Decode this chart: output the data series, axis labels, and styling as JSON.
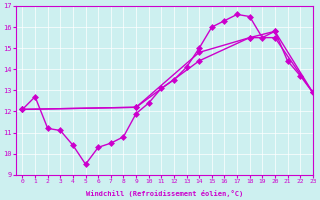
{
  "xlabel": "Windchill (Refroidissement éolien,°C)",
  "xlim": [
    -0.5,
    23
  ],
  "ylim": [
    9,
    17
  ],
  "xticks": [
    0,
    1,
    2,
    3,
    4,
    5,
    6,
    7,
    8,
    9,
    10,
    11,
    12,
    13,
    14,
    15,
    16,
    17,
    18,
    19,
    20,
    21,
    22,
    23
  ],
  "yticks": [
    9,
    10,
    11,
    12,
    13,
    14,
    15,
    16,
    17
  ],
  "bg_color": "#cdf0f0",
  "line_color": "#cc00cc",
  "series": [
    {
      "x": [
        0,
        1,
        2,
        3,
        4,
        5,
        6,
        7,
        8,
        9,
        10,
        11,
        12,
        13,
        14,
        15,
        16,
        17,
        18,
        19,
        20,
        21,
        22,
        23
      ],
      "y": [
        12.1,
        12.7,
        11.2,
        11.1,
        10.4,
        9.5,
        10.3,
        10.5,
        10.8,
        11.9,
        12.4,
        13.1,
        13.5,
        14.1,
        15.0,
        16.0,
        16.3,
        16.6,
        16.5,
        15.5,
        15.8,
        14.4,
        13.7,
        12.9
      ]
    },
    {
      "x": [
        0,
        9,
        14,
        18,
        20,
        23
      ],
      "y": [
        12.1,
        12.2,
        14.8,
        15.5,
        15.8,
        12.9
      ]
    },
    {
      "x": [
        0,
        9,
        14,
        18,
        20,
        23
      ],
      "y": [
        12.1,
        12.2,
        14.4,
        15.5,
        15.5,
        12.9
      ]
    }
  ],
  "markersize": 3,
  "linewidth": 1.0
}
